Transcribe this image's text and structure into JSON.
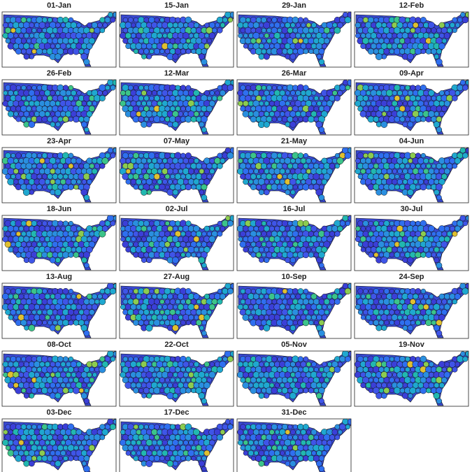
{
  "panels": [
    {
      "title": "01-Jan"
    },
    {
      "title": "15-Jan"
    },
    {
      "title": "29-Jan"
    },
    {
      "title": "12-Feb"
    },
    {
      "title": "26-Feb"
    },
    {
      "title": "12-Mar"
    },
    {
      "title": "26-Mar"
    },
    {
      "title": "09-Apr"
    },
    {
      "title": "23-Apr"
    },
    {
      "title": "07-May"
    },
    {
      "title": "21-May"
    },
    {
      "title": "04-Jun"
    },
    {
      "title": "18-Jun"
    },
    {
      "title": "02-Jul"
    },
    {
      "title": "16-Jul"
    },
    {
      "title": "30-Jul"
    },
    {
      "title": "13-Aug"
    },
    {
      "title": "27-Aug"
    },
    {
      "title": "10-Sep"
    },
    {
      "title": "24-Sep"
    },
    {
      "title": "08-Oct"
    },
    {
      "title": "22-Oct"
    },
    {
      "title": "05-Nov"
    },
    {
      "title": "19-Nov"
    },
    {
      "title": "03-Dec"
    },
    {
      "title": "17-Dec"
    },
    {
      "title": "31-Dec"
    }
  ]
}
